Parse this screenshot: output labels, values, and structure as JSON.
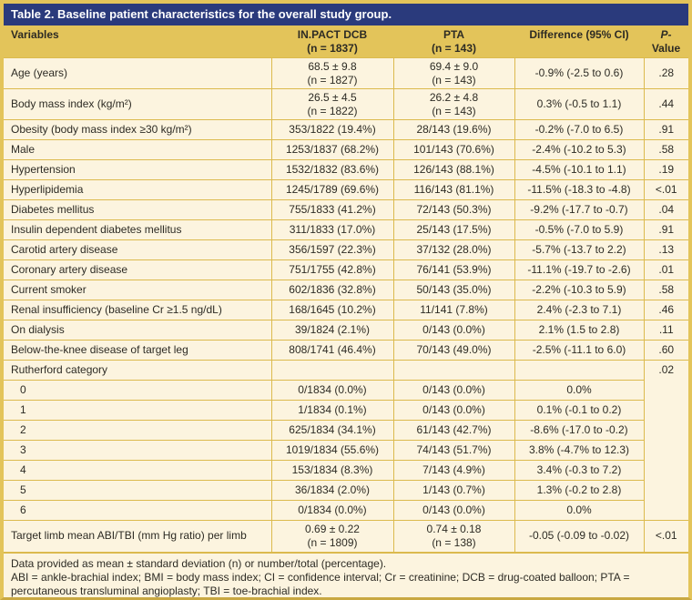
{
  "title": "Table 2. Baseline patient characteristics for the overall study group.",
  "columns": {
    "variables": "Variables",
    "dcb_line1": "IN.PACT DCB",
    "dcb_line2": "(n = 1837)",
    "pta_line1": "PTA",
    "pta_line2": "(n = 143)",
    "difference": "Difference (95% CI)",
    "p_line1": "P-",
    "p_line2": "Value"
  },
  "rows": [
    {
      "label": "Age (years)",
      "dcb": "68.5 ± 9.8",
      "dcb_n": "(n = 1827)",
      "pta": "69.4 ± 9.0",
      "pta_n": "(n = 143)",
      "diff": "-0.9% (-2.5 to 0.6)",
      "p": ".28"
    },
    {
      "label": "Body mass index (kg/m²)",
      "dcb": "26.5 ± 4.5",
      "dcb_n": "(n = 1822)",
      "pta": "26.2 ± 4.8",
      "pta_n": "(n = 143)",
      "diff": "0.3% (-0.5 to 1.1)",
      "p": ".44"
    },
    {
      "label": "Obesity (body mass index ≥30 kg/m²)",
      "dcb": "353/1822 (19.4%)",
      "pta": "28/143 (19.6%)",
      "diff": "-0.2% (-7.0 to 6.5)",
      "p": ".91"
    },
    {
      "label": "Male",
      "dcb": "1253/1837 (68.2%)",
      "pta": "101/143 (70.6%)",
      "diff": "-2.4% (-10.2 to 5.3)",
      "p": ".58"
    },
    {
      "label": "Hypertension",
      "dcb": "1532/1832 (83.6%)",
      "pta": "126/143 (88.1%)",
      "diff": "-4.5% (-10.1 to 1.1)",
      "p": ".19"
    },
    {
      "label": "Hyperlipidemia",
      "dcb": "1245/1789 (69.6%)",
      "pta": "116/143 (81.1%)",
      "diff": "-11.5% (-18.3 to -4.8)",
      "p": "<.01"
    },
    {
      "label": "Diabetes mellitus",
      "dcb": "755/1833 (41.2%)",
      "pta": "72/143 (50.3%)",
      "diff": "-9.2% (-17.7 to -0.7)",
      "p": ".04"
    },
    {
      "label": "Insulin dependent diabetes mellitus",
      "dcb": "311/1833 (17.0%)",
      "pta": "25/143 (17.5%)",
      "diff": "-0.5% (-7.0 to 5.9)",
      "p": ".91"
    },
    {
      "label": "Carotid artery disease",
      "dcb": "356/1597 (22.3%)",
      "pta": "37/132 (28.0%)",
      "diff": "-5.7% (-13.7 to 2.2)",
      "p": ".13"
    },
    {
      "label": "Coronary artery disease",
      "dcb": "751/1755 (42.8%)",
      "pta": "76/141 (53.9%)",
      "diff": "-11.1% (-19.7 to -2.6)",
      "p": ".01"
    },
    {
      "label": "Current smoker",
      "dcb": "602/1836 (32.8%)",
      "pta": "50/143 (35.0%)",
      "diff": "-2.2% (-10.3 to 5.9)",
      "p": ".58"
    },
    {
      "label": "Renal insufficiency (baseline Cr ≥1.5 ng/dL)",
      "dcb": "168/1645 (10.2%)",
      "pta": "11/141 (7.8%)",
      "diff": "2.4% (-2.3 to 7.1)",
      "p": ".46"
    },
    {
      "label": "On dialysis",
      "dcb": "39/1824 (2.1%)",
      "pta": "0/143 (0.0%)",
      "diff": "2.1% (1.5 to 2.8)",
      "p": ".11"
    },
    {
      "label": "Below-the-knee disease of target leg",
      "dcb": "808/1741 (46.4%)",
      "pta": "70/143 (49.0%)",
      "diff": "-2.5% (-11.1 to 6.0)",
      "p": ".60"
    },
    {
      "label": "Rutherford category",
      "dcb": "",
      "pta": "",
      "diff": "",
      "p": ".02",
      "p_rowspan": 8
    },
    {
      "label": "0",
      "indent": true,
      "dcb": "0/1834 (0.0%)",
      "pta": "0/143 (0.0%)",
      "diff": "0.0%",
      "p_hidden": true
    },
    {
      "label": "1",
      "indent": true,
      "dcb": "1/1834 (0.1%)",
      "pta": "0/143 (0.0%)",
      "diff": "0.1% (-0.1 to 0.2)",
      "p_hidden": true
    },
    {
      "label": "2",
      "indent": true,
      "dcb": "625/1834 (34.1%)",
      "pta": "61/143 (42.7%)",
      "diff": "-8.6% (-17.0 to -0.2)",
      "p_hidden": true
    },
    {
      "label": "3",
      "indent": true,
      "dcb": "1019/1834 (55.6%)",
      "pta": "74/143 (51.7%)",
      "diff": "3.8% (-4.7% to 12.3)",
      "p_hidden": true
    },
    {
      "label": "4",
      "indent": true,
      "dcb": "153/1834 (8.3%)",
      "pta": "7/143 (4.9%)",
      "diff": "3.4% (-0.3 to 7.2)",
      "p_hidden": true
    },
    {
      "label": "5",
      "indent": true,
      "dcb": "36/1834 (2.0%)",
      "pta": "1/143 (0.7%)",
      "diff": "1.3% (-0.2 to 2.8)",
      "p_hidden": true
    },
    {
      "label": "6",
      "indent": true,
      "dcb": "0/1834 (0.0%)",
      "pta": "0/143 (0.0%)",
      "diff": "0.0%",
      "p_hidden": true
    },
    {
      "label": "Target limb mean ABI/TBI (mm Hg ratio) per limb",
      "dcb": "0.69 ± 0.22",
      "dcb_n": "(n = 1809)",
      "pta": "0.74 ± 0.18",
      "pta_n": "(n = 138)",
      "diff": "-0.05 (-0.09 to -0.02)",
      "p": "<.01"
    }
  ],
  "footnote": {
    "data_note": "Data provided as mean ± standard deviation (n) or number/total (percentage).",
    "abbreviations": "ABI = ankle-brachial index; BMI = body mass index; CI = confidence interval; Cr = creatinine; DCB = drug-coated balloon; PTA = percutaneous transluminal angioplasty; TBI = toe-brachial index."
  },
  "colors": {
    "title_navy": "#2a3a7c",
    "header_gold": "#e3c45a",
    "row_cream": "#fcf4df",
    "border_gold": "#dcba4e",
    "text_dark": "#2d2b24",
    "title_text": "#ffffff"
  }
}
